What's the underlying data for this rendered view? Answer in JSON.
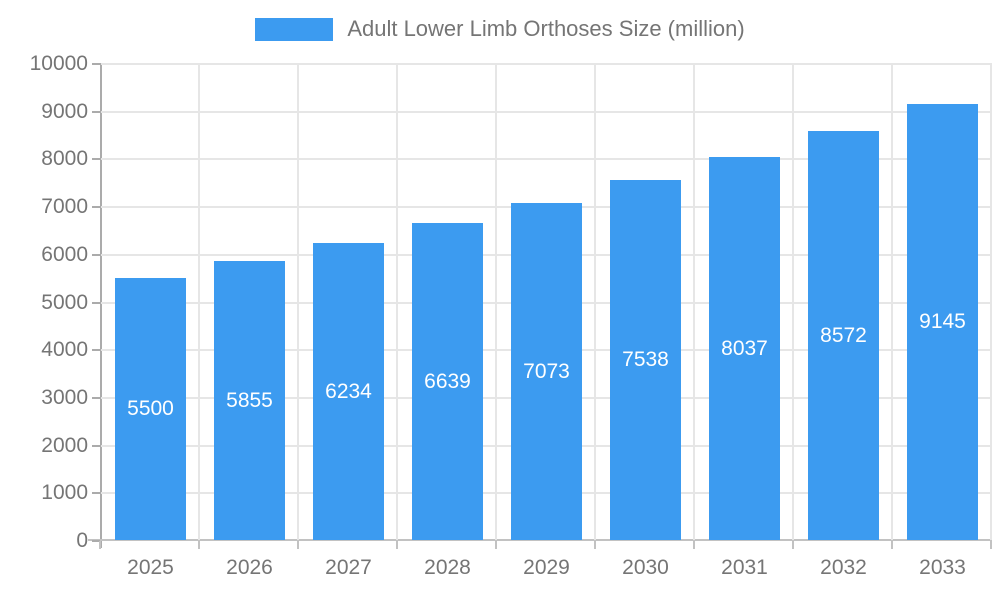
{
  "legend": {
    "label": "Adult Lower Limb Orthoses Size (million)"
  },
  "chart_data": {
    "type": "bar",
    "title": "Adult Lower Limb Orthoses Size (million)",
    "categories": [
      "2025",
      "2026",
      "2027",
      "2028",
      "2029",
      "2030",
      "2031",
      "2032",
      "2033"
    ],
    "values": [
      5500,
      5855,
      6234,
      6639,
      7073,
      7538,
      8037,
      8572,
      9145
    ],
    "xlabel": "",
    "ylabel": "",
    "ylim": [
      0,
      10000
    ],
    "ytick_step": 1000,
    "grid": true,
    "legend_position": "top",
    "value_labels": "inside-center"
  },
  "colors": {
    "bar": "#3c9bf0",
    "gridline": "#e6e6e6",
    "y_axis_line": "#ababab",
    "x_axis_line": "#c2c2c2",
    "tick_text": "#757575",
    "value_label_text": "#ffffff",
    "background": "#ffffff"
  }
}
